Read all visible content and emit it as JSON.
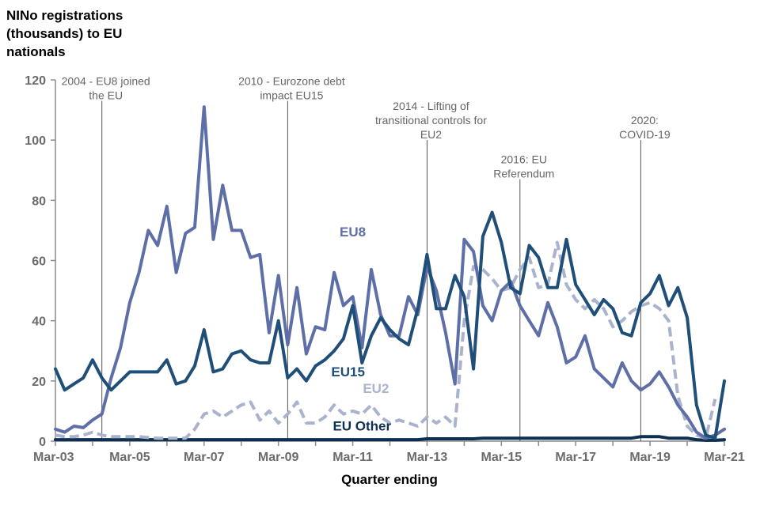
{
  "chart_data": {
    "type": "line",
    "ylabel_lines": [
      "NINo registrations",
      "(thousands) to EU",
      "nationals"
    ],
    "xlabel": "Quarter ending",
    "ylim": [
      0,
      120
    ],
    "yticks": [
      0,
      20,
      40,
      60,
      80,
      100,
      120
    ],
    "xtick_labels": [
      {
        "label": "Mar-03",
        "q": 0
      },
      {
        "label": "Mar-05",
        "q": 8
      },
      {
        "label": "Mar-07",
        "q": 16
      },
      {
        "label": "Mar-09",
        "q": 24
      },
      {
        "label": "Mar-11",
        "q": 32
      },
      {
        "label": "Mar-13",
        "q": 40
      },
      {
        "label": "Mar-15",
        "q": 48
      },
      {
        "label": "Mar-17",
        "q": 56
      },
      {
        "label": "Mar-19",
        "q": 64
      },
      {
        "label": "Mar-21",
        "q": 72
      }
    ],
    "annotations": [
      {
        "q": 5,
        "lines": [
          "2004 - EU8 joined",
          "the EU"
        ],
        "top_value": 113
      },
      {
        "q": 25,
        "lines": [
          "2010 - Eurozone debt",
          "impact EU15"
        ],
        "top_value": 113
      },
      {
        "q": 40,
        "lines": [
          "2014 - Lifting of",
          "transitional controls for",
          "EU2"
        ],
        "top_value": 100
      },
      {
        "q": 50,
        "lines": [
          "2016: EU",
          "Referendum"
        ],
        "top_value": 87
      },
      {
        "q": 63,
        "lines": [
          "2020:",
          "COVID-19"
        ],
        "top_value": 100
      }
    ],
    "series": [
      {
        "name": "EU8",
        "label": "EU8",
        "color": "#5e6fa8",
        "dashed": false,
        "label_q": 32,
        "label_value": 68,
        "values": [
          4,
          3,
          5,
          4.5,
          7,
          9,
          21,
          31,
          46,
          56,
          70,
          65,
          78,
          56,
          69,
          71,
          111,
          67,
          85,
          70,
          70,
          61,
          62,
          36,
          55,
          32,
          51,
          29,
          38,
          37,
          56,
          45,
          48,
          31,
          57,
          42,
          35,
          35,
          48,
          42,
          58,
          50,
          36,
          19,
          67,
          63,
          45,
          40,
          50,
          53,
          45,
          40,
          35,
          46,
          38,
          26,
          28,
          35,
          24,
          21,
          18,
          26,
          20,
          17,
          19,
          23,
          18,
          12,
          8,
          3,
          1,
          2,
          4
        ]
      },
      {
        "name": "EU15",
        "label": "EU15",
        "color": "#1f4e79",
        "dashed": false,
        "label_q": 31.5,
        "label_value": 21.5,
        "values": [
          24,
          17,
          19,
          21,
          27,
          21,
          17,
          20,
          23,
          23,
          23,
          23,
          27,
          19,
          20,
          25,
          37,
          23,
          24,
          29,
          30,
          27,
          26,
          26,
          40,
          21,
          24,
          20,
          25,
          27,
          30,
          34,
          45,
          26,
          35,
          41,
          37,
          34,
          32,
          44,
          62,
          44,
          44,
          55,
          48,
          24,
          68,
          76,
          66,
          51,
          49,
          65,
          61,
          51,
          51,
          67,
          52,
          47,
          42,
          47,
          44,
          36,
          35,
          46,
          49,
          55,
          45,
          51,
          41,
          12,
          2,
          1,
          20
        ]
      },
      {
        "name": "EU2",
        "label": "EU2",
        "color": "#a9b3cd",
        "dashed": true,
        "label_q": 34.5,
        "label_value": 16,
        "values": [
          2,
          1.5,
          1.5,
          2,
          3,
          2,
          1.5,
          1.5,
          1.5,
          1.5,
          1.2,
          1,
          1,
          1,
          1,
          4,
          9,
          10,
          8,
          10,
          12,
          13,
          7,
          10,
          6,
          9,
          13,
          6,
          6,
          8,
          12,
          9,
          10,
          9,
          12,
          8,
          6,
          7,
          6,
          5,
          8,
          6,
          8,
          5,
          40,
          58,
          57,
          54,
          50,
          51,
          57,
          61,
          51,
          52,
          66,
          52,
          47,
          44,
          47,
          44,
          38,
          40,
          43,
          45,
          46,
          44,
          40,
          15,
          5,
          2,
          1,
          14
        ]
      },
      {
        "name": "EU Other",
        "label": "EU Other",
        "color": "#0d2f52",
        "dashed": false,
        "label_q": 33,
        "label_value": 3.5,
        "values": [
          0.5,
          0.5,
          0.5,
          0.5,
          0.5,
          0.5,
          0.5,
          0.5,
          0.5,
          0.5,
          0.5,
          0.5,
          0.5,
          0.5,
          0.5,
          0.5,
          0.5,
          0.5,
          0.5,
          0.5,
          0.5,
          0.5,
          0.5,
          0.5,
          0.5,
          0.5,
          0.5,
          0.5,
          0.5,
          0.5,
          0.5,
          0.5,
          0.5,
          0.5,
          0.5,
          0.5,
          0.5,
          0.5,
          0.5,
          0.5,
          0.8,
          0.8,
          0.8,
          0.8,
          0.8,
          0.8,
          1,
          1,
          1,
          1,
          1,
          1,
          1,
          1,
          1,
          1,
          1,
          1,
          1,
          1,
          1,
          1,
          1,
          1.5,
          1.5,
          1.5,
          1,
          1,
          1,
          0.5,
          0.3,
          0.3,
          0.5
        ]
      }
    ]
  }
}
